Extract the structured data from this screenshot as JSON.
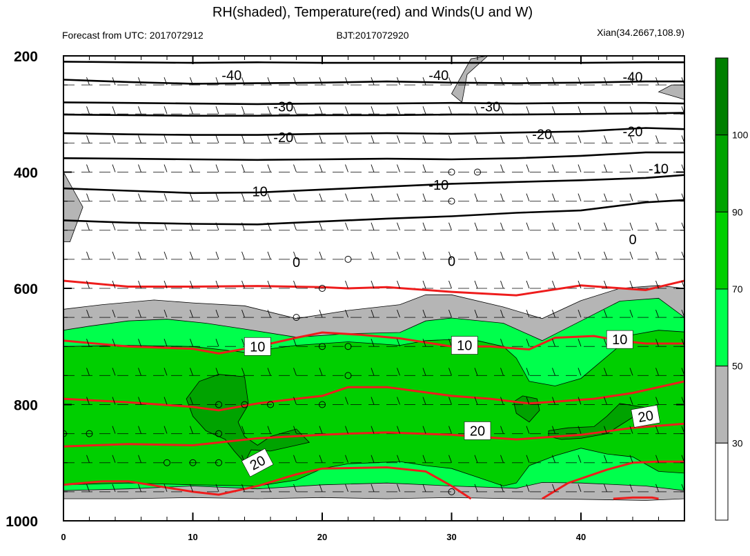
{
  "chart_data": {
    "type": "heatmap",
    "title": "RH(shaded), Temperature(red) and Winds(U and W)",
    "subtitle_left": "Forecast from UTC: 2017072912",
    "subtitle_center": "BJT:2017072920",
    "subtitle_right": "Xian(34.2667,108.9)",
    "xlim": [
      0,
      48
    ],
    "ylim": [
      200,
      1000
    ],
    "x_ticks": [
      0,
      10,
      20,
      30,
      40
    ],
    "y_ticks": [
      200,
      400,
      600,
      800,
      1000
    ],
    "y_reversed": true,
    "colorbar": {
      "levels": [
        30,
        50,
        70,
        90,
        100
      ],
      "colors": [
        "#ffffff",
        "#b5b5b5",
        "#00ff4c",
        "#00cf00",
        "#00a300",
        "#007f00"
      ]
    },
    "rh_regions": [
      {
        "level": 30,
        "x": [
          0,
          3,
          7,
          10,
          14,
          18,
          22,
          26,
          28,
          30,
          34,
          37,
          40,
          43,
          46,
          48,
          48,
          45,
          40,
          35,
          30,
          25,
          20,
          15,
          10,
          5,
          0
        ],
        "y": [
          636,
          628,
          620,
          625,
          630,
          652,
          638,
          628,
          611,
          611,
          632,
          652,
          621,
          600,
          595,
          600,
          962,
          965,
          963,
          962,
          960,
          962,
          960,
          962,
          960,
          962,
          962
        ]
      },
      {
        "level": 50,
        "x": [
          0,
          2,
          5,
          8,
          11,
          14,
          18,
          22,
          26,
          28,
          30,
          34,
          37,
          40,
          43,
          46,
          48,
          48,
          45,
          40,
          37,
          35,
          30,
          25,
          20,
          15,
          10,
          5,
          0
        ],
        "y": [
          672,
          665,
          656,
          653,
          660,
          670,
          684,
          678,
          676,
          656,
          651,
          660,
          690,
          656,
          622,
          617,
          650,
          948,
          940,
          935,
          934,
          944,
          940,
          935,
          938,
          945,
          940,
          945,
          948
        ]
      },
      {
        "level": 70,
        "x": [
          0,
          5,
          10,
          14,
          18,
          22,
          24,
          26,
          28,
          30,
          32,
          34,
          35,
          36,
          38,
          40,
          44,
          46,
          48,
          48,
          46,
          44,
          42,
          40,
          38,
          36,
          35,
          34,
          32,
          30,
          28,
          26,
          24,
          22,
          20,
          18,
          15,
          10,
          5,
          0
        ],
        "y": [
          700,
          698,
          700,
          710,
          698,
          692,
          695,
          698,
          690,
          688,
          690,
          700,
          720,
          760,
          768,
          755,
          680,
          672,
          675,
          918,
          915,
          890,
          885,
          875,
          888,
          905,
          935,
          940,
          925,
          910,
          905,
          898,
          900,
          902,
          910,
          930,
          940,
          938,
          935,
          938
        ]
      },
      {
        "level": 90,
        "x": [
          9.5,
          10.5,
          12,
          14,
          14.3,
          13.5,
          14,
          15,
          16,
          18,
          19,
          18,
          16,
          14.5,
          14,
          13.2,
          12.5,
          11,
          10
        ],
        "y": [
          790,
          760,
          748,
          752,
          800,
          830,
          855,
          870,
          855,
          842,
          865,
          870,
          880,
          878,
          900,
          880,
          860,
          845,
          820
        ]
      },
      {
        "level": 90,
        "x": [
          34.8,
          35.5,
          36.6,
          36.8,
          36,
          35
        ],
        "y": [
          795,
          785,
          790,
          810,
          830,
          815
        ]
      },
      {
        "level": 90,
        "x": [
          37.5,
          39,
          41,
          42,
          43,
          45,
          44,
          42,
          40,
          38.5,
          37.5
        ],
        "y": [
          845,
          840,
          838,
          820,
          798,
          805,
          822,
          850,
          858,
          860,
          855
        ]
      }
    ],
    "temperature_contours": [
      {
        "value": 0,
        "x": [
          0,
          5,
          10,
          15,
          20,
          22,
          25,
          30,
          35,
          40,
          45,
          48
        ],
        "y": [
          587,
          597,
          597,
          596,
          598,
          600,
          598,
          606,
          612,
          595,
          603,
          587
        ]
      },
      {
        "value": 10,
        "x": [
          0,
          5,
          10,
          12,
          15,
          18,
          20,
          23,
          26,
          30,
          33,
          36,
          38,
          41,
          43,
          45,
          48
        ],
        "y": [
          690,
          700,
          704,
          712,
          700,
          685,
          676,
          680,
          686,
          700,
          700,
          705,
          685,
          682,
          690,
          695,
          695
        ]
      },
      {
        "value": 20,
        "x": [
          0,
          5,
          10,
          12,
          15,
          18,
          20,
          22,
          25,
          30,
          33,
          36,
          38,
          41,
          44,
          48
        ],
        "y": [
          790,
          796,
          804,
          810,
          798,
          790,
          785,
          770,
          770,
          785,
          790,
          798,
          795,
          790,
          780,
          760
        ]
      },
      {
        "value": 20,
        "x": [
          0,
          5,
          10,
          15,
          20,
          22,
          25,
          30,
          35,
          40,
          44,
          48
        ],
        "y": [
          872,
          868,
          870,
          858,
          852,
          850,
          848,
          852,
          860,
          852,
          840,
          833
        ]
      },
      {
        "value": 30,
        "x": [
          0,
          3,
          5,
          10,
          12,
          15,
          18,
          20,
          25,
          28,
          30,
          31.5
        ],
        "y": [
          938,
          932,
          932,
          950,
          955,
          940,
          920,
          910,
          908,
          915,
          940,
          962
        ]
      },
      {
        "value": 30,
        "x": [
          37,
          39,
          42,
          44,
          46,
          48
        ],
        "y": [
          962,
          935,
          912,
          900,
          898,
          898
        ]
      },
      {
        "value": 30,
        "x": [
          42.5,
          44,
          45.5,
          46
        ],
        "y": [
          962,
          960,
          960,
          962
        ]
      }
    ],
    "temperature_labels": [
      {
        "text": "10",
        "x": 15,
        "y": 700
      },
      {
        "text": "10",
        "x": 31,
        "y": 698
      },
      {
        "text": "10",
        "x": 43,
        "y": 688
      },
      {
        "text": "20",
        "x": 32,
        "y": 845
      },
      {
        "text": "20",
        "x": 45,
        "y": 820
      },
      {
        "text": "20",
        "x": 15,
        "y": 900
      }
    ],
    "isotherms_upper": [
      {
        "x": [
          0,
          5,
          10,
          15,
          20,
          25,
          30,
          35,
          40,
          45,
          48
        ],
        "y": [
          210,
          211,
          212,
          211,
          212,
          212,
          212,
          212,
          212,
          211,
          211
        ]
      },
      {
        "x": [
          0,
          5,
          10,
          15,
          20,
          25,
          30,
          35,
          40,
          45,
          48
        ],
        "y": [
          241,
          245,
          248,
          247,
          246,
          244,
          246,
          247,
          246,
          244,
          244
        ]
      },
      {
        "x": [
          0,
          5,
          10,
          15,
          20,
          25,
          30,
          35,
          40,
          45,
          48
        ],
        "y": [
          280,
          281,
          282,
          283,
          282,
          282,
          281,
          282,
          281,
          281,
          282
        ]
      },
      {
        "x": [
          0,
          5,
          10,
          15,
          20,
          25,
          30,
          35,
          40,
          45,
          48
        ],
        "y": [
          301,
          302,
          303,
          303,
          302,
          302,
          301,
          301,
          300,
          299,
          298
        ]
      },
      {
        "x": [
          0,
          5,
          10,
          15,
          20,
          25,
          30,
          35,
          40,
          45,
          48
        ],
        "y": [
          333,
          335,
          336,
          336,
          334,
          333,
          334,
          332,
          330,
          324,
          326
        ]
      },
      {
        "x": [
          0,
          5,
          10,
          15,
          20,
          25,
          30,
          35,
          40,
          45,
          48
        ],
        "y": [
          376,
          377,
          378,
          379,
          378,
          377,
          378,
          376,
          372,
          366,
          366
        ]
      },
      {
        "x": [
          0,
          5,
          10,
          15,
          20,
          25,
          30,
          35,
          40,
          45,
          48
        ],
        "y": [
          428,
          432,
          436,
          435,
          430,
          425,
          420,
          417,
          414,
          410,
          405
        ]
      },
      {
        "x": [
          0,
          5,
          10,
          15,
          20,
          25,
          30,
          35,
          40,
          45,
          48
        ],
        "y": [
          483,
          487,
          489,
          490,
          485,
          480,
          476,
          470,
          466,
          452,
          448
        ]
      }
    ],
    "isotherm_labels": [
      {
        "text": "-40",
        "x": 13,
        "y": 233
      },
      {
        "text": "-40",
        "x": 29,
        "y": 233
      },
      {
        "text": "-40",
        "x": 44,
        "y": 236
      },
      {
        "text": "-30",
        "x": 17,
        "y": 287
      },
      {
        "text": "-30",
        "x": 33,
        "y": 287
      },
      {
        "text": "-20",
        "x": 17,
        "y": 340
      },
      {
        "text": "-20",
        "x": 37,
        "y": 335
      },
      {
        "text": "-20",
        "x": 44,
        "y": 330
      },
      {
        "text": "-10",
        "x": 15,
        "y": 433
      },
      {
        "text": "-10",
        "x": 29,
        "y": 422
      },
      {
        "text": "-10",
        "x": 46,
        "y": 394
      },
      {
        "text": "0",
        "x": 18,
        "y": 555
      },
      {
        "text": "0",
        "x": 30,
        "y": 553
      },
      {
        "text": "0",
        "x": 44,
        "y": 516
      }
    ],
    "calm_points": [
      {
        "x": 30,
        "y": 400
      },
      {
        "x": 32,
        "y": 400
      },
      {
        "x": 30,
        "y": 450
      },
      {
        "x": 22,
        "y": 550
      },
      {
        "x": 20,
        "y": 600
      },
      {
        "x": 18,
        "y": 650
      },
      {
        "x": 20,
        "y": 700
      },
      {
        "x": 22,
        "y": 700
      },
      {
        "x": 22,
        "y": 750
      },
      {
        "x": 12,
        "y": 800
      },
      {
        "x": 14,
        "y": 800
      },
      {
        "x": 16,
        "y": 800
      },
      {
        "x": 20,
        "y": 800
      },
      {
        "x": 0,
        "y": 850
      },
      {
        "x": 2,
        "y": 850
      },
      {
        "x": 12,
        "y": 850
      },
      {
        "x": 8,
        "y": 900
      },
      {
        "x": 10,
        "y": 900
      },
      {
        "x": 12,
        "y": 900
      },
      {
        "x": 30,
        "y": 950
      }
    ],
    "wind_levels": [
      200,
      250,
      300,
      350,
      400,
      450,
      500,
      550,
      600,
      650,
      700,
      750,
      800,
      850,
      900,
      950
    ],
    "wind_x": [
      0,
      2,
      4,
      6,
      8,
      10,
      12,
      14,
      16,
      18,
      20,
      22,
      24,
      26,
      28,
      30,
      32,
      34,
      36,
      38,
      40,
      42,
      44,
      46,
      48
    ]
  }
}
